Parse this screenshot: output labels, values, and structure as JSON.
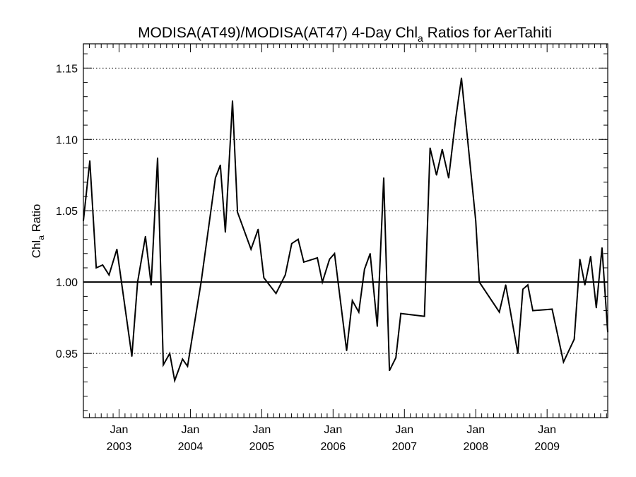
{
  "chart_data": {
    "type": "line",
    "title": "MODISA(AT49)/MODISA(AT47) 4-Day Chl",
    "title_subscript": "a",
    "title_suffix": " Ratios for AerTahiti",
    "ylabel": "Chl",
    "ylabel_subscript": "a",
    "ylabel_suffix": " Ratio",
    "xlabel": "",
    "xlim": [
      2002.5,
      2009.85
    ],
    "ylim": [
      0.905,
      1.167
    ],
    "yticks": [
      0.95,
      1.0,
      1.05,
      1.1,
      1.15
    ],
    "ytick_labels": [
      "0.95",
      "1.00",
      "1.05",
      "1.10",
      "1.15"
    ],
    "xticks": [
      {
        "x": 2003.0,
        "month": "Jan",
        "year": "2003"
      },
      {
        "x": 2004.0,
        "month": "Jan",
        "year": "2004"
      },
      {
        "x": 2005.0,
        "month": "Jan",
        "year": "2005"
      },
      {
        "x": 2006.0,
        "month": "Jan",
        "year": "2006"
      },
      {
        "x": 2007.0,
        "month": "Jan",
        "year": "2007"
      },
      {
        "x": 2008.0,
        "month": "Jan",
        "year": "2008"
      },
      {
        "x": 2009.0,
        "month": "Jan",
        "year": "2009"
      }
    ],
    "reference_line": 1.0,
    "grid": "dotted horizontal at major y ticks",
    "series": [
      {
        "color": "#000000",
        "x": [
          2002.5,
          2002.59,
          2002.68,
          2002.77,
          2002.86,
          2002.97,
          2003.18,
          2003.26,
          2003.37,
          2003.45,
          2003.54,
          2003.62,
          2003.71,
          2003.78,
          2003.89,
          2003.96,
          2004.15,
          2004.35,
          2004.42,
          2004.49,
          2004.59,
          2004.66,
          2004.85,
          2004.95,
          2005.03,
          2005.2,
          2005.33,
          2005.42,
          2005.51,
          2005.59,
          2005.78,
          2005.85,
          2005.95,
          2006.02,
          2006.19,
          2006.27,
          2006.36,
          2006.44,
          2006.52,
          2006.62,
          2006.71,
          2006.79,
          2006.88,
          2006.95,
          2007.28,
          2007.36,
          2007.45,
          2007.53,
          2007.62,
          2007.72,
          2007.8,
          2008.0,
          2008.05,
          2008.33,
          2008.42,
          2008.59,
          2008.66,
          2008.73,
          2008.8,
          2009.07,
          2009.23,
          2009.38,
          2009.46,
          2009.53,
          2009.61,
          2009.69,
          2009.77,
          2009.85
        ],
        "values": [
          1.043,
          1.085,
          1.01,
          1.012,
          1.005,
          1.023,
          0.948,
          1.0,
          1.032,
          0.998,
          1.087,
          0.942,
          0.95,
          0.931,
          0.946,
          0.941,
          1.0,
          1.073,
          1.082,
          1.035,
          1.127,
          1.049,
          1.023,
          1.037,
          1.003,
          0.992,
          1.005,
          1.027,
          1.03,
          1.014,
          1.017,
          1.0,
          1.016,
          1.02,
          0.952,
          0.987,
          0.979,
          1.009,
          1.02,
          0.969,
          1.073,
          0.938,
          0.947,
          0.978,
          0.976,
          1.094,
          1.075,
          1.093,
          1.073,
          1.115,
          1.143,
          1.043,
          1.0,
          0.979,
          0.998,
          0.95,
          0.995,
          0.998,
          0.98,
          0.981,
          0.944,
          0.96,
          1.016,
          0.998,
          1.018,
          0.982,
          1.024,
          0.965
        ]
      }
    ]
  }
}
